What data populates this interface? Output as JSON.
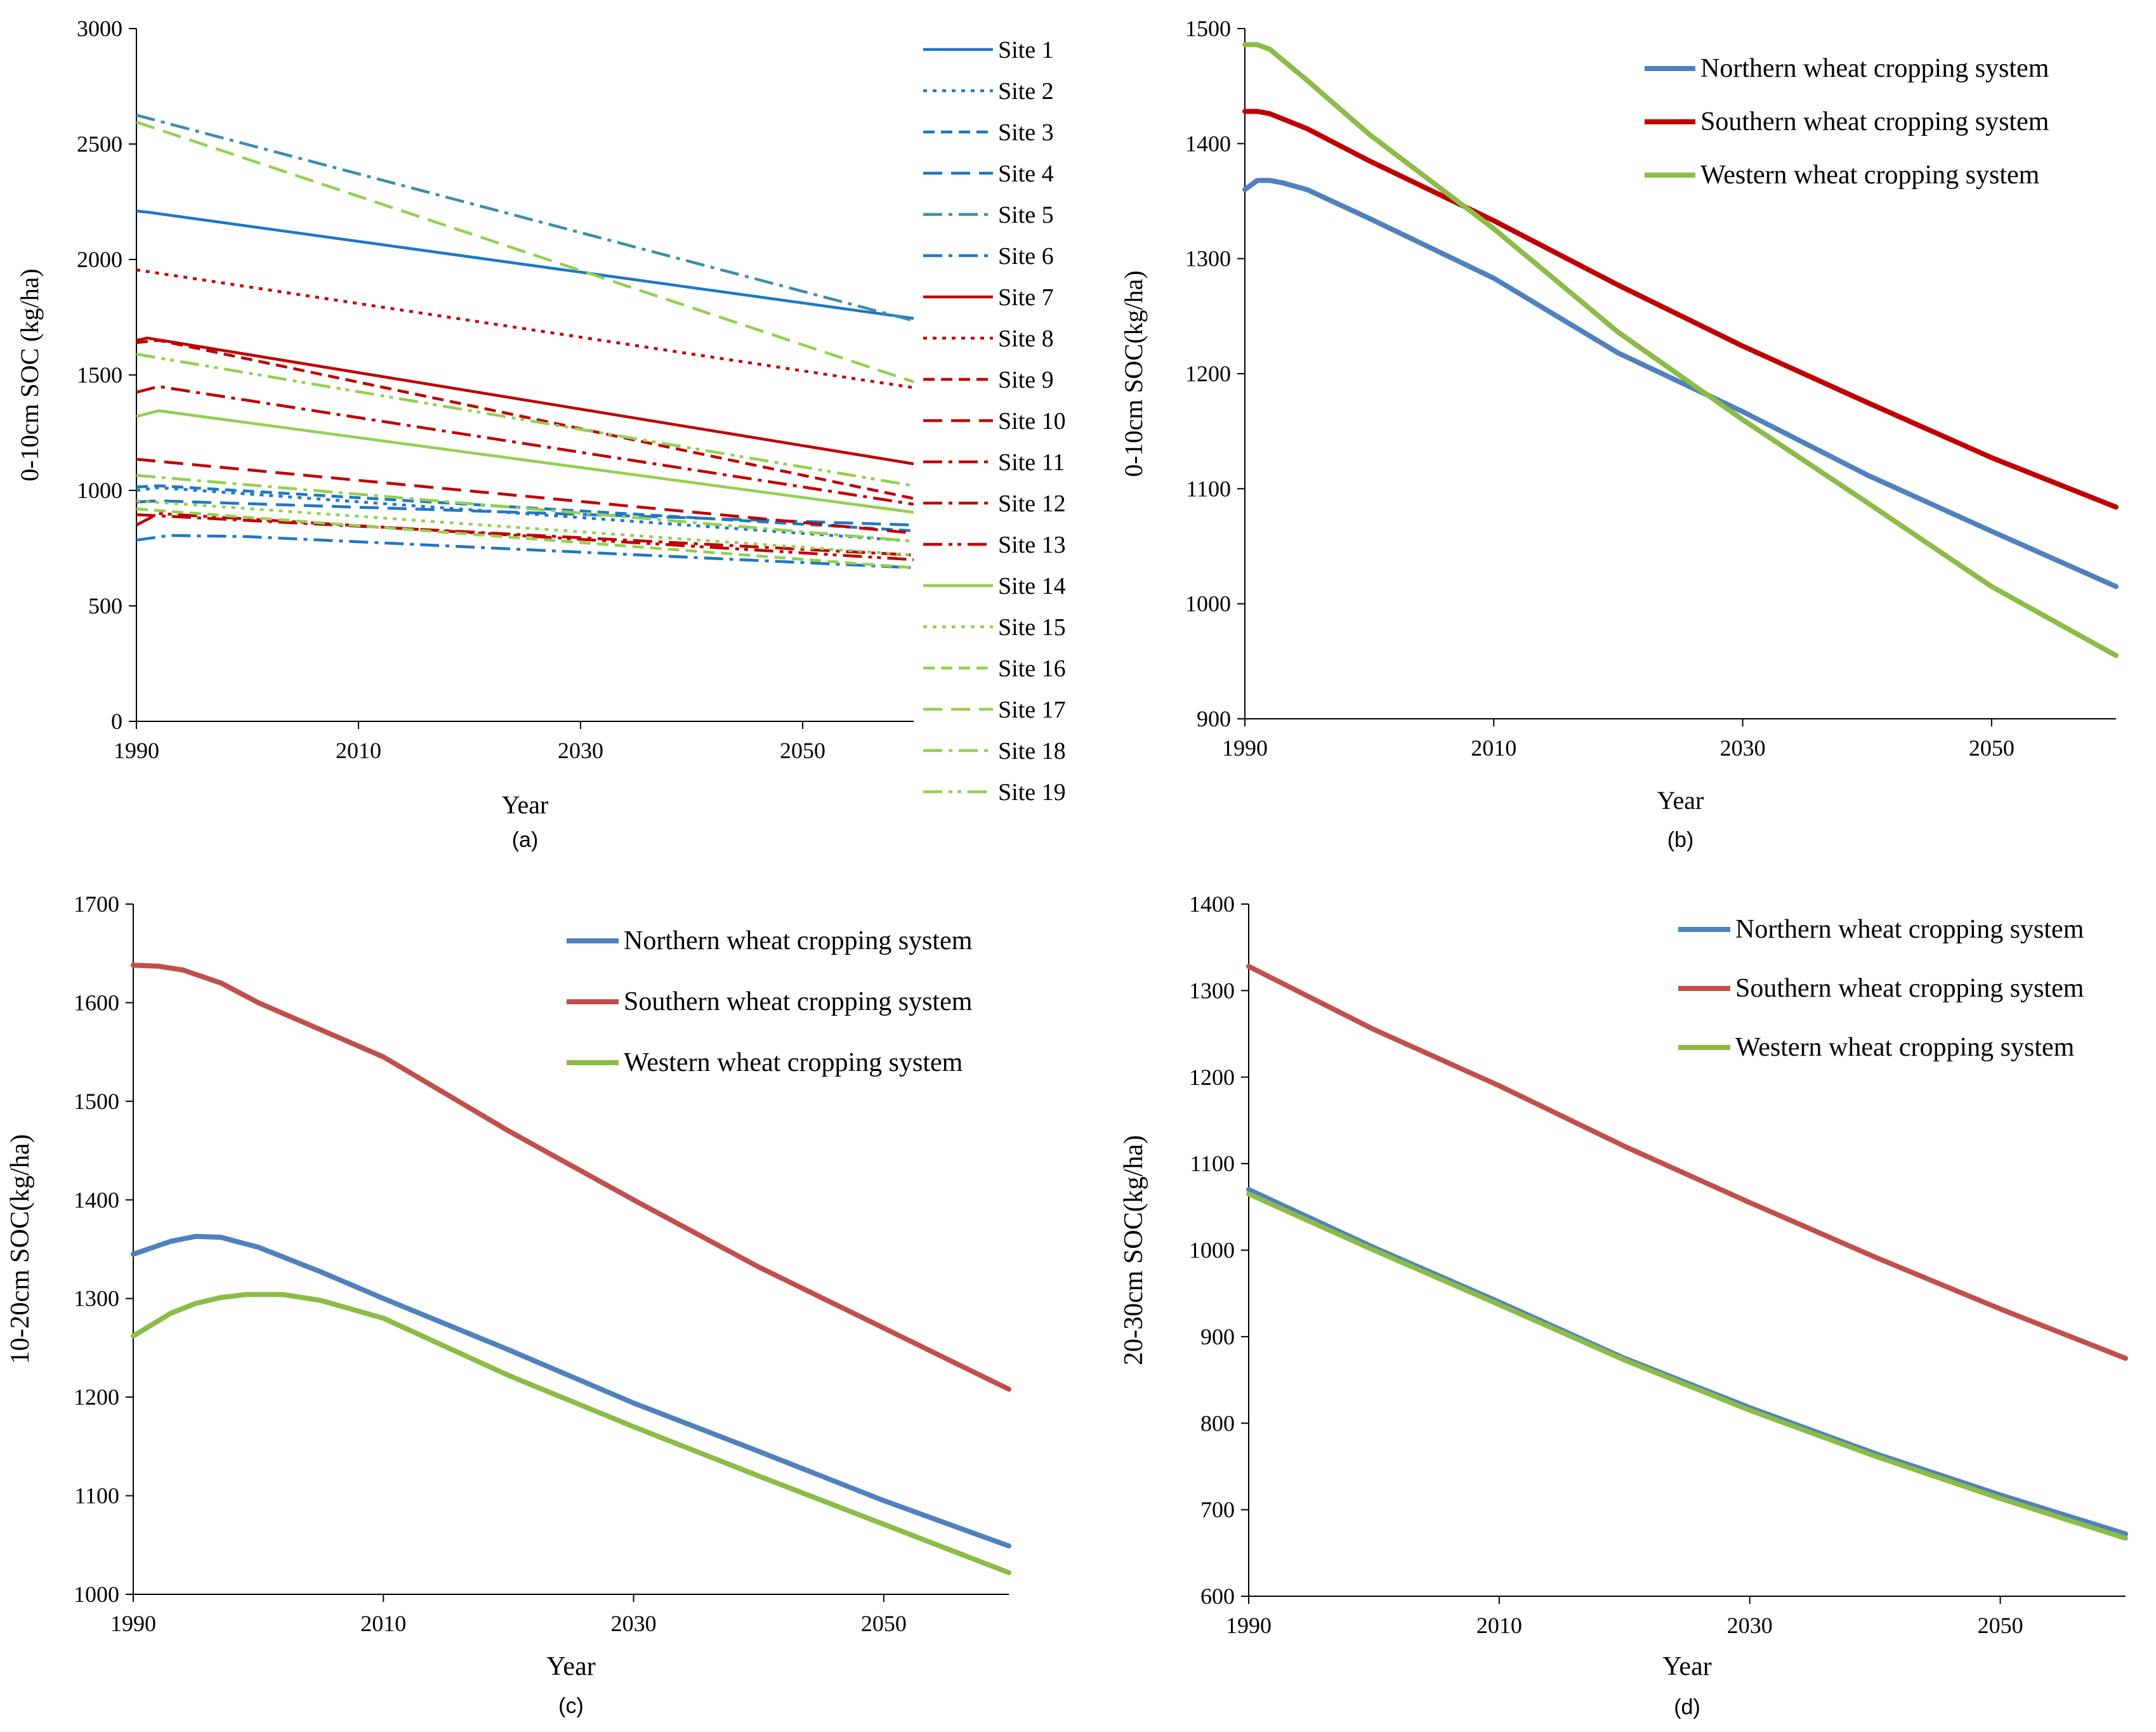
{
  "chart_data": [
    {
      "panel_label": "(a)",
      "type": "line",
      "xlabel": "Year",
      "ylabel": "0-10cm SOC (kg/ha)",
      "xlim": [
        1990,
        2060
      ],
      "ylim": [
        0,
        3000
      ],
      "xticks": [
        1990,
        2010,
        2030,
        2050
      ],
      "yticks": [
        0,
        500,
        1000,
        1500,
        2000,
        2500,
        3000
      ],
      "series": [
        {
          "name": "Site 1",
          "color": "#1f77c4",
          "dash": "solid",
          "x": [
            1990,
            1991,
            2060
          ],
          "y": [
            2210,
            2205,
            1745
          ]
        },
        {
          "name": "Site 2",
          "color": "#1f77c4",
          "dash": "dot",
          "x": [
            1990,
            1992,
            2060
          ],
          "y": [
            1000,
            1012,
            780
          ]
        },
        {
          "name": "Site 3",
          "color": "#1f77c4",
          "dash": "dash",
          "x": [
            1990,
            1992,
            2060
          ],
          "y": [
            1015,
            1020,
            825
          ]
        },
        {
          "name": "Site 4",
          "color": "#1f77c4",
          "dash": "longdash",
          "x": [
            1990,
            1992,
            2060
          ],
          "y": [
            950,
            955,
            850
          ]
        },
        {
          "name": "Site 5",
          "color": "#3a8faa",
          "dash": "dashdot",
          "x": [
            1990,
            2060
          ],
          "y": [
            2625,
            1735
          ]
        },
        {
          "name": "Site 6",
          "color": "#1f77c4",
          "dash": "dashdot",
          "x": [
            1990,
            1993,
            2000,
            2060
          ],
          "y": [
            785,
            805,
            800,
            665
          ]
        },
        {
          "name": "Site 7",
          "color": "#c00000",
          "dash": "solid",
          "x": [
            1990,
            1991,
            2060
          ],
          "y": [
            1650,
            1660,
            1115
          ]
        },
        {
          "name": "Site 8",
          "color": "#c00000",
          "dash": "dot",
          "x": [
            1990,
            2060
          ],
          "y": [
            1955,
            1445
          ]
        },
        {
          "name": "Site 9",
          "color": "#c00000",
          "dash": "dash",
          "x": [
            1990,
            1992,
            2060
          ],
          "y": [
            1640,
            1650,
            965
          ]
        },
        {
          "name": "Site 10",
          "color": "#c00000",
          "dash": "longdash",
          "x": [
            1990,
            2060
          ],
          "y": [
            1135,
            815
          ]
        },
        {
          "name": "Site 11",
          "color": "#c00000",
          "dash": "dashdot",
          "x": [
            1990,
            2060
          ],
          "y": [
            895,
            720
          ]
        },
        {
          "name": "Site 12",
          "color": "#c00000",
          "dash": "dashdot",
          "x": [
            1990,
            1992,
            2060
          ],
          "y": [
            1425,
            1450,
            940
          ]
        },
        {
          "name": "Site 13",
          "color": "#c00000",
          "dash": "dashdotdot",
          "x": [
            1990,
            1992,
            2060
          ],
          "y": [
            850,
            900,
            700
          ]
        },
        {
          "name": "Site 14",
          "color": "#92d050",
          "dash": "solid",
          "x": [
            1990,
            1992,
            2060
          ],
          "y": [
            1320,
            1345,
            905
          ]
        },
        {
          "name": "Site 15",
          "color": "#92d050",
          "dash": "dot",
          "x": [
            1990,
            2060
          ],
          "y": [
            955,
            720
          ]
        },
        {
          "name": "Site 16",
          "color": "#92d050",
          "dash": "dash",
          "x": [
            1990,
            2060
          ],
          "y": [
            920,
            665
          ]
        },
        {
          "name": "Site 17",
          "color": "#92d050",
          "dash": "longdash",
          "x": [
            1990,
            2060
          ],
          "y": [
            2595,
            1470
          ]
        },
        {
          "name": "Site 18",
          "color": "#92d050",
          "dash": "dashdot",
          "x": [
            1990,
            2060
          ],
          "y": [
            1065,
            780
          ]
        },
        {
          "name": "Site 19",
          "color": "#92d050",
          "dash": "dashdotdot",
          "x": [
            1990,
            2060
          ],
          "y": [
            1590,
            1020
          ]
        }
      ]
    },
    {
      "panel_label": "(b)",
      "type": "line",
      "xlabel": "Year",
      "ylabel": "0-10cm SOC(kg/ha)",
      "xlim": [
        1990,
        2060
      ],
      "ylim": [
        900,
        1500
      ],
      "xticks": [
        1990,
        2010,
        2030,
        2050
      ],
      "yticks": [
        900,
        1000,
        1100,
        1200,
        1300,
        1400,
        1500
      ],
      "series": [
        {
          "name": "Northern wheat cropping system",
          "color": "#4f81bd",
          "x": [
            1990,
            1991,
            1992,
            1993,
            1995,
            2000,
            2010,
            2020,
            2030,
            2040,
            2050,
            2060
          ],
          "y": [
            1360,
            1368,
            1368,
            1366,
            1360,
            1335,
            1283,
            1218,
            1167,
            1112,
            1063,
            1015
          ]
        },
        {
          "name": "Southern wheat cropping system",
          "color": "#c00000",
          "x": [
            1990,
            1991,
            1992,
            1995,
            2000,
            2010,
            2020,
            2030,
            2040,
            2050,
            2060
          ],
          "y": [
            1428,
            1428,
            1426,
            1413,
            1385,
            1333,
            1277,
            1224,
            1175,
            1127,
            1084
          ]
        },
        {
          "name": "Western wheat cropping system",
          "color": "#8dbb47",
          "x": [
            1990,
            1991,
            1992,
            1995,
            2000,
            2010,
            2020,
            2030,
            2040,
            2050,
            2060
          ],
          "y": [
            1486,
            1486,
            1482,
            1455,
            1408,
            1326,
            1236,
            1160,
            1088,
            1015,
            955
          ]
        }
      ]
    },
    {
      "panel_label": "(c)",
      "type": "line",
      "xlabel": "Year",
      "ylabel": "10-20cm SOC(kg/ha)",
      "xlim": [
        1990,
        2060
      ],
      "ylim": [
        1000,
        1700
      ],
      "xticks": [
        1990,
        2010,
        2030,
        2050
      ],
      "yticks": [
        1000,
        1100,
        1200,
        1300,
        1400,
        1500,
        1600,
        1700
      ],
      "series": [
        {
          "name": "Northern wheat cropping system",
          "color": "#4f81bd",
          "x": [
            1990,
            1993,
            1995,
            1997,
            2000,
            2005,
            2010,
            2020,
            2030,
            2040,
            2050,
            2060
          ],
          "y": [
            1345,
            1358,
            1363,
            1362,
            1352,
            1327,
            1300,
            1248,
            1194,
            1145,
            1095,
            1049
          ]
        },
        {
          "name": "Southern wheat cropping system",
          "color": "#c0504d",
          "x": [
            1990,
            1992,
            1994,
            1997,
            2000,
            2010,
            2020,
            2030,
            2040,
            2050,
            2060
          ],
          "y": [
            1638,
            1637,
            1633,
            1620,
            1600,
            1545,
            1470,
            1400,
            1332,
            1270,
            1208
          ]
        },
        {
          "name": "Western wheat cropping system",
          "color": "#8dbb47",
          "x": [
            1990,
            1993,
            1995,
            1997,
            1999,
            2002,
            2005,
            2010,
            2020,
            2030,
            2040,
            2050,
            2060
          ],
          "y": [
            1262,
            1285,
            1295,
            1301,
            1304,
            1304,
            1298,
            1280,
            1222,
            1170,
            1120,
            1071,
            1022
          ]
        }
      ]
    },
    {
      "panel_label": "(d)",
      "type": "line",
      "xlabel": "Year",
      "ylabel": "20-30cm SOC(kg/ha)",
      "xlim": [
        1990,
        2060
      ],
      "ylim": [
        600,
        1400
      ],
      "xticks": [
        1990,
        2010,
        2030,
        2050
      ],
      "yticks": [
        600,
        700,
        800,
        900,
        1000,
        1100,
        1200,
        1300,
        1400
      ],
      "series": [
        {
          "name": "Northern wheat cropping system",
          "color": "#4f81bd",
          "x": [
            1990,
            2000,
            2010,
            2020,
            2030,
            2040,
            2050,
            2060
          ],
          "y": [
            1070,
            1003,
            940,
            875,
            818,
            765,
            717,
            672
          ]
        },
        {
          "name": "Southern wheat cropping system",
          "color": "#c0504d",
          "x": [
            1990,
            2000,
            2010,
            2020,
            2030,
            2040,
            2050,
            2060
          ],
          "y": [
            1328,
            1255,
            1190,
            1120,
            1055,
            992,
            932,
            875
          ]
        },
        {
          "name": "Western wheat cropping system",
          "color": "#8dbb47",
          "x": [
            1990,
            2000,
            2010,
            2020,
            2030,
            2040,
            2050,
            2060
          ],
          "y": [
            1065,
            1000,
            937,
            873,
            815,
            762,
            713,
            667
          ]
        }
      ]
    }
  ]
}
